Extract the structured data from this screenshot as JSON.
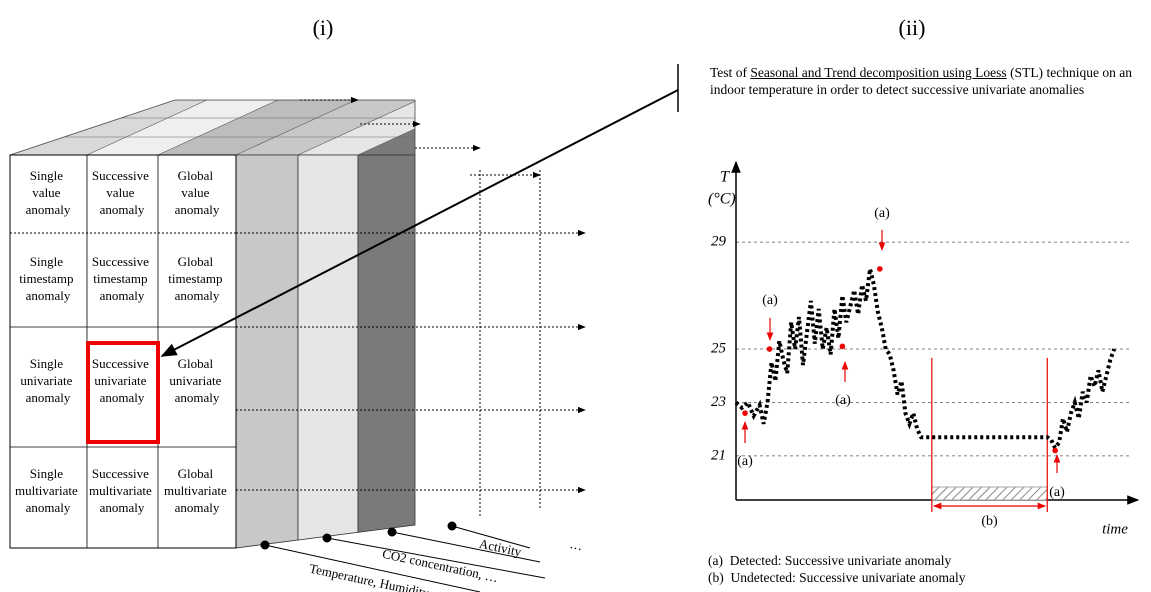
{
  "panel_labels": [
    "(i)",
    "(ii)"
  ],
  "cube": {
    "rows": [
      [
        "Single value anomaly",
        "Successive value anomaly",
        "Global value anomaly"
      ],
      [
        "Single timestamp anomaly",
        "Successive timestamp anomaly",
        "Global timestamp anomaly"
      ],
      [
        "Single univariate anomaly",
        "Successive univariate anomaly",
        "Global univariate anomaly"
      ],
      [
        "Single multivariate anomaly",
        "Successive multivariate anomaly",
        "Global multivariate anomaly"
      ]
    ],
    "dimensions": [
      "Activity",
      "CO2 concentration, …",
      "Temperature, Humidity, …",
      "…"
    ]
  },
  "description": {
    "before": "Test of ",
    "underlined": "Seasonal and Trend decomposition using Loess",
    "after": " (STL) technique on an indoor temperature in order to detect successive univariate anomalies"
  },
  "plot": {
    "y_symbol": "T",
    "y_unit": "(°C)",
    "x_label": "time",
    "xlim": [
      0,
      100
    ],
    "ylim": [
      19.35,
      31.7
    ],
    "yticks": [
      29,
      25,
      23,
      21
    ],
    "grid": true,
    "x": [
      0,
      1.5,
      3,
      4.5,
      6,
      7,
      8,
      9,
      10,
      11,
      12,
      13,
      14,
      15,
      16,
      17,
      18,
      19,
      20,
      21,
      22,
      23,
      24,
      25,
      26,
      27,
      28,
      29,
      30,
      31,
      32,
      33,
      34,
      35,
      36,
      37,
      38,
      39,
      40,
      41,
      42,
      43,
      44,
      45,
      46,
      47,
      79,
      80,
      81,
      82,
      83,
      84,
      85,
      86,
      87,
      88,
      89,
      90,
      91,
      92,
      93,
      94,
      95,
      96
    ],
    "values": [
      23.0,
      22.8,
      23.0,
      22.5,
      22.9,
      22.2,
      23.0,
      24.5,
      23.8,
      25.3,
      24.6,
      24.1,
      26.0,
      25.0,
      26.2,
      24.4,
      25.6,
      26.8,
      25.2,
      26.5,
      25.0,
      25.8,
      24.8,
      26.5,
      25.4,
      27.0,
      26.0,
      26.6,
      27.2,
      26.3,
      27.4,
      26.8,
      28.0,
      27.4,
      26.4,
      25.8,
      25.0,
      24.8,
      24.2,
      23.3,
      23.8,
      22.6,
      22.2,
      22.6,
      22.0,
      21.7,
      21.7,
      21.6,
      21.3,
      21.5,
      22.4,
      21.9,
      22.6,
      23.0,
      22.4,
      23.4,
      23.0,
      24.0,
      23.6,
      24.2,
      23.4,
      24.0,
      24.6,
      25.0
    ],
    "detected": [
      {
        "x": 2.3,
        "value": 22.6
      },
      {
        "x": 8.5,
        "value": 25.0
      },
      {
        "x": 27,
        "value": 25.1
      },
      {
        "x": 36.5,
        "value": 28.0
      },
      {
        "x": 81,
        "value": 21.2
      }
    ],
    "undetected_range": [
      49.7,
      79
    ],
    "annotations": [
      "(a)",
      "(a)",
      "(a)",
      "(a)",
      "(a)",
      "(b)"
    ]
  },
  "legend": [
    "(a)  Detected: Successive univariate anomaly",
    "(b)  Undetected: Successive univariate anomaly"
  ]
}
